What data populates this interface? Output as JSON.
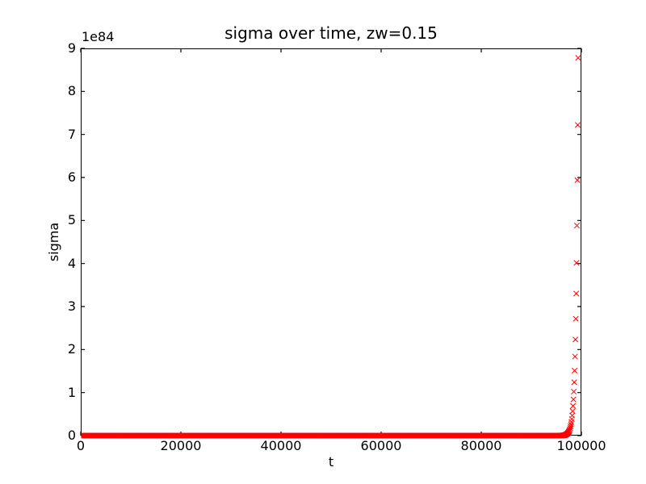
{
  "figure": {
    "background": "#ffffff",
    "frame_color": "#000000",
    "text_color": "#000000"
  },
  "chart_data": {
    "type": "scatter",
    "title": "sigma over time, zw=0.15",
    "xlabel": "t",
    "ylabel": "sigma",
    "y_scale_offset": "1e84",
    "marker": "x",
    "marker_color": "#ff0000",
    "grid": false,
    "legend": null,
    "xlim": [
      0,
      100000
    ],
    "ylim_in_1e84_units": [
      0,
      9
    ],
    "x_ticks": [
      0,
      20000,
      40000,
      60000,
      80000,
      100000
    ],
    "x_tick_labels": [
      "0",
      "20000",
      "40000",
      "60000",
      "80000",
      "100000"
    ],
    "y_ticks_in_1e84_units": [
      0,
      1,
      2,
      3,
      4,
      5,
      6,
      7,
      8,
      9
    ],
    "y_tick_labels": [
      "0",
      "1",
      "2",
      "3",
      "4",
      "5",
      "6",
      "7",
      "8",
      "9"
    ],
    "series": [
      {
        "name": "sigma",
        "description": "sigma stays visually at ~0 from t=0 until t~96000, then grows explosively (exponential, ~x1.22 per 80 t-units), peaking at ~8.78e84 near t~99400",
        "model": "sigma(t) = 8.78e84 * exp(0.0024446 * (t - 99360))",
        "generator": {
          "t_start": 80,
          "t_step": 80,
          "t_end": 99360,
          "peak_sigma_1e84": 8.78,
          "growth_rate_per_t": 0.0024446
        },
        "visible_top_points_t_vs_sigma_1e84": [
          {
            "t": 99360,
            "sigma_1e84": 8.78
          },
          {
            "t": 99280,
            "sigma_1e84": 7.22
          },
          {
            "t": 99200,
            "sigma_1e84": 5.94
          },
          {
            "t": 99120,
            "sigma_1e84": 4.89
          },
          {
            "t": 99040,
            "sigma_1e84": 4.02
          },
          {
            "t": 98960,
            "sigma_1e84": 3.31
          },
          {
            "t": 98880,
            "sigma_1e84": 2.72
          },
          {
            "t": 98800,
            "sigma_1e84": 2.24
          },
          {
            "t": 98720,
            "sigma_1e84": 1.84
          },
          {
            "t": 98640,
            "sigma_1e84": 1.51
          },
          {
            "t": 98560,
            "sigma_1e84": 1.24
          },
          {
            "t": 98480,
            "sigma_1e84": 1.02
          }
        ]
      }
    ]
  }
}
